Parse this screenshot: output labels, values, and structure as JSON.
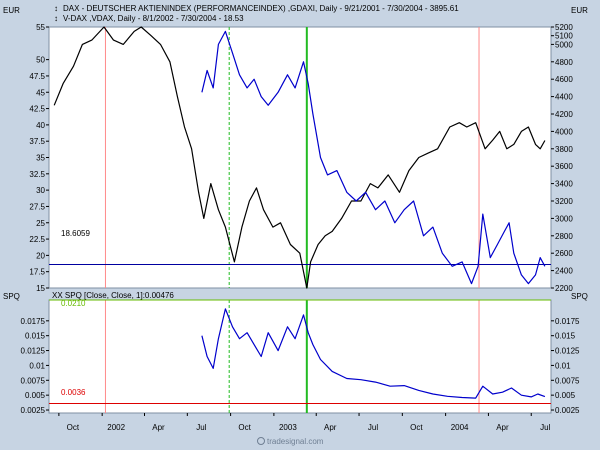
{
  "chart_data": [
    {
      "type": "line",
      "panel": "upper",
      "left_axis_label": "EUR",
      "right_axis_label": "EUR",
      "legend": [
        "DAX - DEUTSCHER AKTIENINDEX (PERFORMANCEINDEX) ,GDAXI, Daily - 9/21/2001 - 7/30/2004 - 3895.61",
        "V-DAX ,VDAX, Daily - 8/1/2002 - 7/30/2004 - 18.53"
      ],
      "left_ticks": [
        "55",
        "50",
        "47.5",
        "45",
        "42.5",
        "40",
        "37.5",
        "35",
        "32.5",
        "30",
        "27.5",
        "25",
        "22.5",
        "20",
        "17.5",
        "15"
      ],
      "right_ticks": [
        "5200",
        "5100",
        "5000",
        "4800",
        "4600",
        "4400",
        "4200",
        "4000",
        "3800",
        "3600",
        "3400",
        "3200",
        "3000",
        "2800",
        "2600",
        "2400",
        "2200"
      ],
      "left_range": [
        15,
        55
      ],
      "right_range": [
        2200,
        5200
      ],
      "hline": {
        "label": "18.6059",
        "value": 18.6059,
        "color": "#0000a0"
      },
      "series": [
        {
          "name": "DAX",
          "axis": "right",
          "color": "#000000",
          "points": [
            [
              "2001-09-21",
              4300
            ],
            [
              "2001-10-10",
              4550
            ],
            [
              "2001-11-01",
              4750
            ],
            [
              "2001-11-20",
              5000
            ],
            [
              "2001-12-10",
              5050
            ],
            [
              "2002-01-05",
              5200
            ],
            [
              "2002-01-25",
              5050
            ],
            [
              "2002-02-15",
              5000
            ],
            [
              "2002-03-10",
              5150
            ],
            [
              "2002-03-25",
              5200
            ],
            [
              "2002-04-15",
              5100
            ],
            [
              "2002-05-05",
              5000
            ],
            [
              "2002-05-25",
              4800
            ],
            [
              "2002-06-10",
              4400
            ],
            [
              "2002-06-25",
              4050
            ],
            [
              "2002-07-10",
              3800
            ],
            [
              "2002-07-25",
              3300
            ],
            [
              "2002-08-05",
              3000
            ],
            [
              "2002-08-20",
              3400
            ],
            [
              "2002-09-05",
              3100
            ],
            [
              "2002-09-20",
              2900
            ],
            [
              "2002-10-09",
              2500
            ],
            [
              "2002-10-25",
              2900
            ],
            [
              "2002-11-10",
              3200
            ],
            [
              "2002-11-25",
              3350
            ],
            [
              "2002-12-10",
              3100
            ],
            [
              "2002-12-30",
              2900
            ],
            [
              "2003-01-15",
              2950
            ],
            [
              "2003-02-05",
              2700
            ],
            [
              "2003-02-25",
              2600
            ],
            [
              "2003-03-12",
              2200
            ],
            [
              "2003-03-20",
              2500
            ],
            [
              "2003-04-05",
              2700
            ],
            [
              "2003-04-20",
              2800
            ],
            [
              "2003-05-05",
              2850
            ],
            [
              "2003-05-25",
              3000
            ],
            [
              "2003-06-15",
              3200
            ],
            [
              "2003-07-05",
              3200
            ],
            [
              "2003-07-25",
              3400
            ],
            [
              "2003-08-10",
              3350
            ],
            [
              "2003-09-01",
              3500
            ],
            [
              "2003-09-25",
              3300
            ],
            [
              "2003-10-15",
              3550
            ],
            [
              "2003-11-05",
              3700
            ],
            [
              "2003-11-25",
              3750
            ],
            [
              "2003-12-15",
              3800
            ],
            [
              "2004-01-10",
              4050
            ],
            [
              "2004-01-30",
              4100
            ],
            [
              "2004-02-15",
              4050
            ],
            [
              "2004-03-05",
              4100
            ],
            [
              "2004-03-25",
              3800
            ],
            [
              "2004-04-10",
              3900
            ],
            [
              "2004-04-25",
              4000
            ],
            [
              "2004-05-10",
              3800
            ],
            [
              "2004-05-25",
              3850
            ],
            [
              "2004-06-10",
              4000
            ],
            [
              "2004-06-25",
              4050
            ],
            [
              "2004-07-10",
              3850
            ],
            [
              "2004-07-20",
              3800
            ],
            [
              "2004-07-30",
              3895.61
            ]
          ]
        },
        {
          "name": "V-DAX",
          "axis": "right",
          "color": "#0000cc",
          "points": [
            [
              "2002-08-01",
              4450
            ],
            [
              "2002-08-12",
              4700
            ],
            [
              "2002-08-25",
              4500
            ],
            [
              "2002-09-05",
              5000
            ],
            [
              "2002-09-20",
              5150
            ],
            [
              "2002-10-05",
              4900
            ],
            [
              "2002-10-20",
              4650
            ],
            [
              "2002-11-05",
              4500
            ],
            [
              "2002-11-20",
              4600
            ],
            [
              "2002-12-05",
              4400
            ],
            [
              "2002-12-20",
              4300
            ],
            [
              "2003-01-10",
              4450
            ],
            [
              "2003-01-30",
              4650
            ],
            [
              "2003-02-15",
              4500
            ],
            [
              "2003-03-05",
              4800
            ],
            [
              "2003-03-15",
              4550
            ],
            [
              "2003-03-25",
              4200
            ],
            [
              "2003-04-10",
              3700
            ],
            [
              "2003-04-25",
              3500
            ],
            [
              "2003-05-15",
              3550
            ],
            [
              "2003-06-05",
              3300
            ],
            [
              "2003-06-25",
              3200
            ],
            [
              "2003-07-15",
              3300
            ],
            [
              "2003-08-05",
              3100
            ],
            [
              "2003-08-25",
              3200
            ],
            [
              "2003-09-15",
              2950
            ],
            [
              "2003-10-05",
              3100
            ],
            [
              "2003-10-25",
              3200
            ],
            [
              "2003-11-15",
              2800
            ],
            [
              "2003-12-05",
              2900
            ],
            [
              "2003-12-25",
              2600
            ],
            [
              "2004-01-15",
              2450
            ],
            [
              "2004-02-05",
              2500
            ],
            [
              "2004-02-25",
              2250
            ],
            [
              "2004-03-10",
              2450
            ],
            [
              "2004-03-20",
              3050
            ],
            [
              "2004-04-05",
              2550
            ],
            [
              "2004-04-20",
              2700
            ],
            [
              "2004-05-05",
              2850
            ],
            [
              "2004-05-15",
              2950
            ],
            [
              "2004-05-25",
              2600
            ],
            [
              "2004-06-10",
              2350
            ],
            [
              "2004-06-25",
              2250
            ],
            [
              "2004-07-10",
              2350
            ],
            [
              "2004-07-20",
              2550
            ],
            [
              "2004-07-30",
              2450
            ]
          ]
        }
      ]
    },
    {
      "type": "line",
      "panel": "lower",
      "left_axis_label": "SPQ",
      "right_axis_label": "SPQ",
      "legend": [
        "XX SPQ [Close, Close, 1]:0.00476"
      ],
      "left_ticks": [
        "0.0175",
        "0.015",
        "0.0125",
        "0.01",
        "0.0075",
        "0.005",
        "0.0025"
      ],
      "right_ticks": [
        "0.0175",
        "0.015",
        "0.0125",
        "0.01",
        "0.0075",
        "0.005",
        "0.0025"
      ],
      "range": [
        0.002,
        0.021
      ],
      "hlines": [
        {
          "label": "0.0210",
          "value": 0.021,
          "color": "#66bb00"
        },
        {
          "label": "0.0036",
          "value": 0.0036,
          "color": "#dd0000"
        }
      ],
      "series": [
        {
          "name": "SPQ",
          "color": "#0000cc",
          "points": [
            [
              "2002-08-01",
              0.015
            ],
            [
              "2002-08-12",
              0.0115
            ],
            [
              "2002-08-25",
              0.0095
            ],
            [
              "2002-09-05",
              0.0145
            ],
            [
              "2002-09-20",
              0.0195
            ],
            [
              "2002-10-05",
              0.0165
            ],
            [
              "2002-10-20",
              0.0145
            ],
            [
              "2002-11-05",
              0.0155
            ],
            [
              "2002-11-20",
              0.0135
            ],
            [
              "2002-12-05",
              0.0115
            ],
            [
              "2002-12-20",
              0.0155
            ],
            [
              "2003-01-10",
              0.0125
            ],
            [
              "2003-01-30",
              0.0165
            ],
            [
              "2003-02-15",
              0.0145
            ],
            [
              "2003-03-05",
              0.0185
            ],
            [
              "2003-03-15",
              0.0155
            ],
            [
              "2003-03-25",
              0.0135
            ],
            [
              "2003-04-10",
              0.011
            ],
            [
              "2003-05-05",
              0.009
            ],
            [
              "2003-06-05",
              0.0078
            ],
            [
              "2003-07-05",
              0.0076
            ],
            [
              "2003-08-05",
              0.0072
            ],
            [
              "2003-09-05",
              0.0065
            ],
            [
              "2003-10-05",
              0.0066
            ],
            [
              "2003-11-05",
              0.0058
            ],
            [
              "2003-12-05",
              0.0052
            ],
            [
              "2004-01-05",
              0.0048
            ],
            [
              "2004-02-05",
              0.0046
            ],
            [
              "2004-03-05",
              0.0045
            ],
            [
              "2004-03-20",
              0.0065
            ],
            [
              "2004-04-10",
              0.0052
            ],
            [
              "2004-05-01",
              0.0055
            ],
            [
              "2004-05-20",
              0.0062
            ],
            [
              "2004-06-10",
              0.005
            ],
            [
              "2004-07-01",
              0.0047
            ],
            [
              "2004-07-15",
              0.0052
            ],
            [
              "2004-07-30",
              0.00476
            ]
          ]
        }
      ]
    }
  ],
  "x_axis": {
    "range": [
      "2001-09-10",
      "2004-08-12"
    ],
    "ticks": [
      {
        "label": "Oct",
        "date": "2001-10-01"
      },
      {
        "label": "2002",
        "date": "2002-01-01"
      },
      {
        "label": "Apr",
        "date": "2002-04-01"
      },
      {
        "label": "Jul",
        "date": "2002-07-01"
      },
      {
        "label": "Oct",
        "date": "2002-10-01"
      },
      {
        "label": "2003",
        "date": "2003-01-01"
      },
      {
        "label": "Apr",
        "date": "2003-04-01"
      },
      {
        "label": "Jul",
        "date": "2003-07-01"
      },
      {
        "label": "Oct",
        "date": "2003-10-01"
      },
      {
        "label": "2004",
        "date": "2004-01-01"
      },
      {
        "label": "Apr",
        "date": "2004-04-01"
      },
      {
        "label": "Jul",
        "date": "2004-07-01"
      }
    ]
  },
  "markers": [
    {
      "date": "2002-01-08",
      "color": "#ff8a8a",
      "style": "solid"
    },
    {
      "date": "2002-09-28",
      "color": "#22bb22",
      "style": "dashed"
    },
    {
      "date": "2003-03-12",
      "color": "#22bb22",
      "style": "solid"
    },
    {
      "date": "2004-03-12",
      "color": "#ff8a8a",
      "style": "solid"
    }
  ],
  "watermark": "tradesignal.com"
}
